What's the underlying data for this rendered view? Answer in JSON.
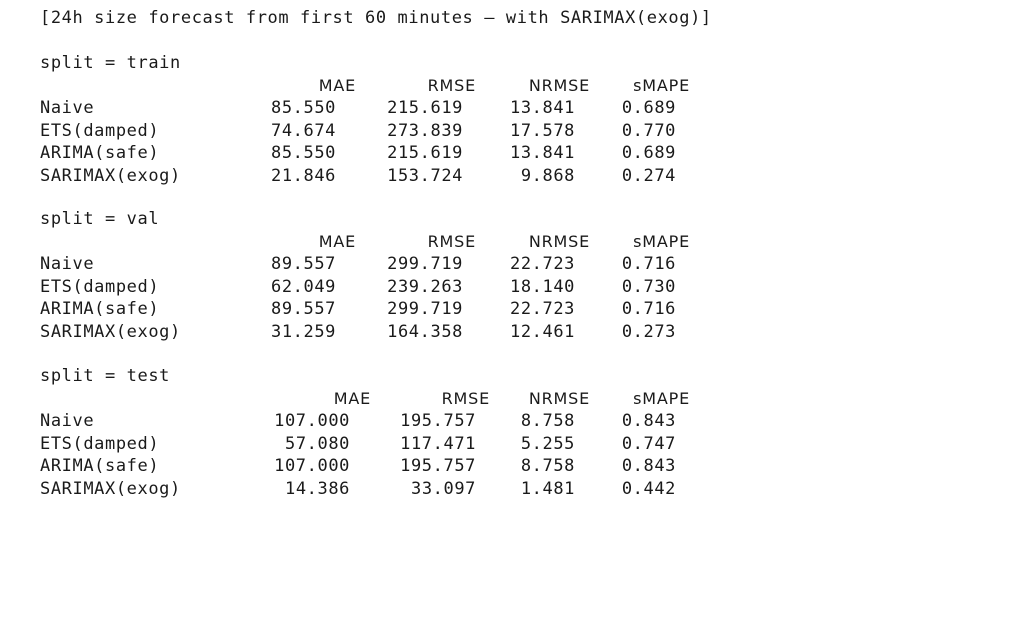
{
  "console": {
    "header": "[24h size forecast from first 60 minutes — with SARIMAX(exog)]",
    "columns": [
      "MAE",
      "RMSE",
      "NRMSE",
      "sMAPE"
    ],
    "splits": [
      {
        "title": "split = train",
        "rows": [
          {
            "model": "Naive",
            "mae": "85.550",
            "rmse": "215.619",
            "nrmse": "13.841",
            "smape": "0.689"
          },
          {
            "model": "ETS(damped)",
            "mae": "74.674",
            "rmse": "273.839",
            "nrmse": "17.578",
            "smape": "0.770"
          },
          {
            "model": "ARIMA(safe)",
            "mae": "85.550",
            "rmse": "215.619",
            "nrmse": "13.841",
            "smape": "0.689"
          },
          {
            "model": "SARIMAX(exog)",
            "mae": "21.846",
            "rmse": "153.724",
            "nrmse": "9.868",
            "smape": "0.274"
          }
        ]
      },
      {
        "title": "split = val",
        "rows": [
          {
            "model": "Naive",
            "mae": "89.557",
            "rmse": "299.719",
            "nrmse": "22.723",
            "smape": "0.716"
          },
          {
            "model": "ETS(damped)",
            "mae": "62.049",
            "rmse": "239.263",
            "nrmse": "18.140",
            "smape": "0.730"
          },
          {
            "model": "ARIMA(safe)",
            "mae": "89.557",
            "rmse": "299.719",
            "nrmse": "22.723",
            "smape": "0.716"
          },
          {
            "model": "SARIMAX(exog)",
            "mae": "31.259",
            "rmse": "164.358",
            "nrmse": "12.461",
            "smape": "0.273"
          }
        ]
      },
      {
        "title": "split = test",
        "rows": [
          {
            "model": "Naive",
            "mae": "107.000",
            "rmse": "195.757",
            "nrmse": "8.758",
            "smape": "0.843"
          },
          {
            "model": "ETS(damped)",
            "mae": "57.080",
            "rmse": "117.471",
            "nrmse": "5.255",
            "smape": "0.747"
          },
          {
            "model": "ARIMA(safe)",
            "mae": "107.000",
            "rmse": "195.757",
            "nrmse": "8.758",
            "smape": "0.843"
          },
          {
            "model": "SARIMAX(exog)",
            "mae": "14.386",
            "rmse": "33.097",
            "nrmse": "1.481",
            "smape": "0.442"
          }
        ]
      }
    ]
  }
}
